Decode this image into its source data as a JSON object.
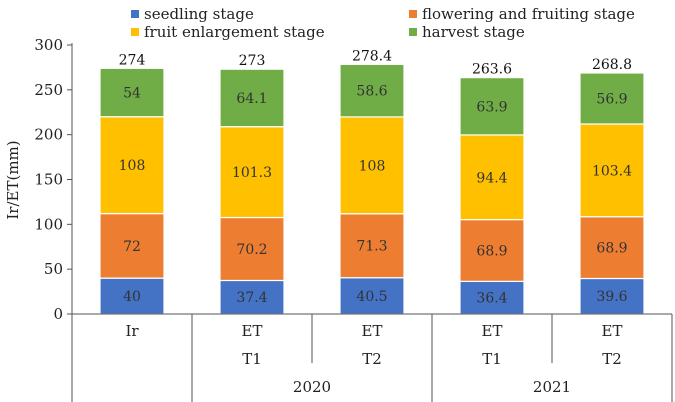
{
  "chart_data": {
    "type": "bar",
    "stacked": true,
    "ylabel": "Ir/ET(mm)",
    "ylim": [
      0,
      300
    ],
    "yticks": [
      0,
      50,
      100,
      150,
      200,
      250,
      300
    ],
    "grid": false,
    "legend_position": "top",
    "categories": [
      {
        "row1": "Ir",
        "row2": "",
        "year": ""
      },
      {
        "row1": "ET",
        "row2": "T1",
        "year": "2020"
      },
      {
        "row1": "ET",
        "row2": "T2",
        "year": "2020"
      },
      {
        "row1": "ET",
        "row2": "T1",
        "year": "2021"
      },
      {
        "row1": "ET",
        "row2": "T2",
        "year": "2021"
      }
    ],
    "year_groups": [
      {
        "label": "2020",
        "from": 1,
        "to": 2
      },
      {
        "label": "2021",
        "from": 3,
        "to": 4
      }
    ],
    "series": [
      {
        "name": "seedling stage",
        "color": "#4472C4",
        "labels": [
          "40",
          "37.4",
          "40.5",
          "36.4",
          "39.6"
        ],
        "values": [
          40,
          37.4,
          40.5,
          36.4,
          39.6
        ]
      },
      {
        "name": "flowering and fruiting stage",
        "color": "#ED7D31",
        "labels": [
          "72",
          "70.2",
          "71.3",
          "68.9",
          "68.9"
        ],
        "values": [
          72,
          70.2,
          71.3,
          68.9,
          68.9
        ]
      },
      {
        "name": "fruit enlargement stage",
        "color": "#FFC000",
        "labels": [
          "108",
          "101.3",
          "108",
          "94.4",
          "103.4"
        ],
        "values": [
          108,
          101.3,
          108,
          94.4,
          103.4
        ]
      },
      {
        "name": "harvest stage",
        "color": "#70AD47",
        "labels": [
          "54",
          "64.1",
          "58.6",
          "63.9",
          "56.9"
        ],
        "values": [
          54,
          64.1,
          58.6,
          63.9,
          56.9
        ]
      }
    ],
    "totals": [
      "274",
      "273",
      "278.4",
      "263.6",
      "268.8"
    ],
    "total_values": [
      274,
      273,
      278.4,
      263.6,
      268.8
    ]
  }
}
